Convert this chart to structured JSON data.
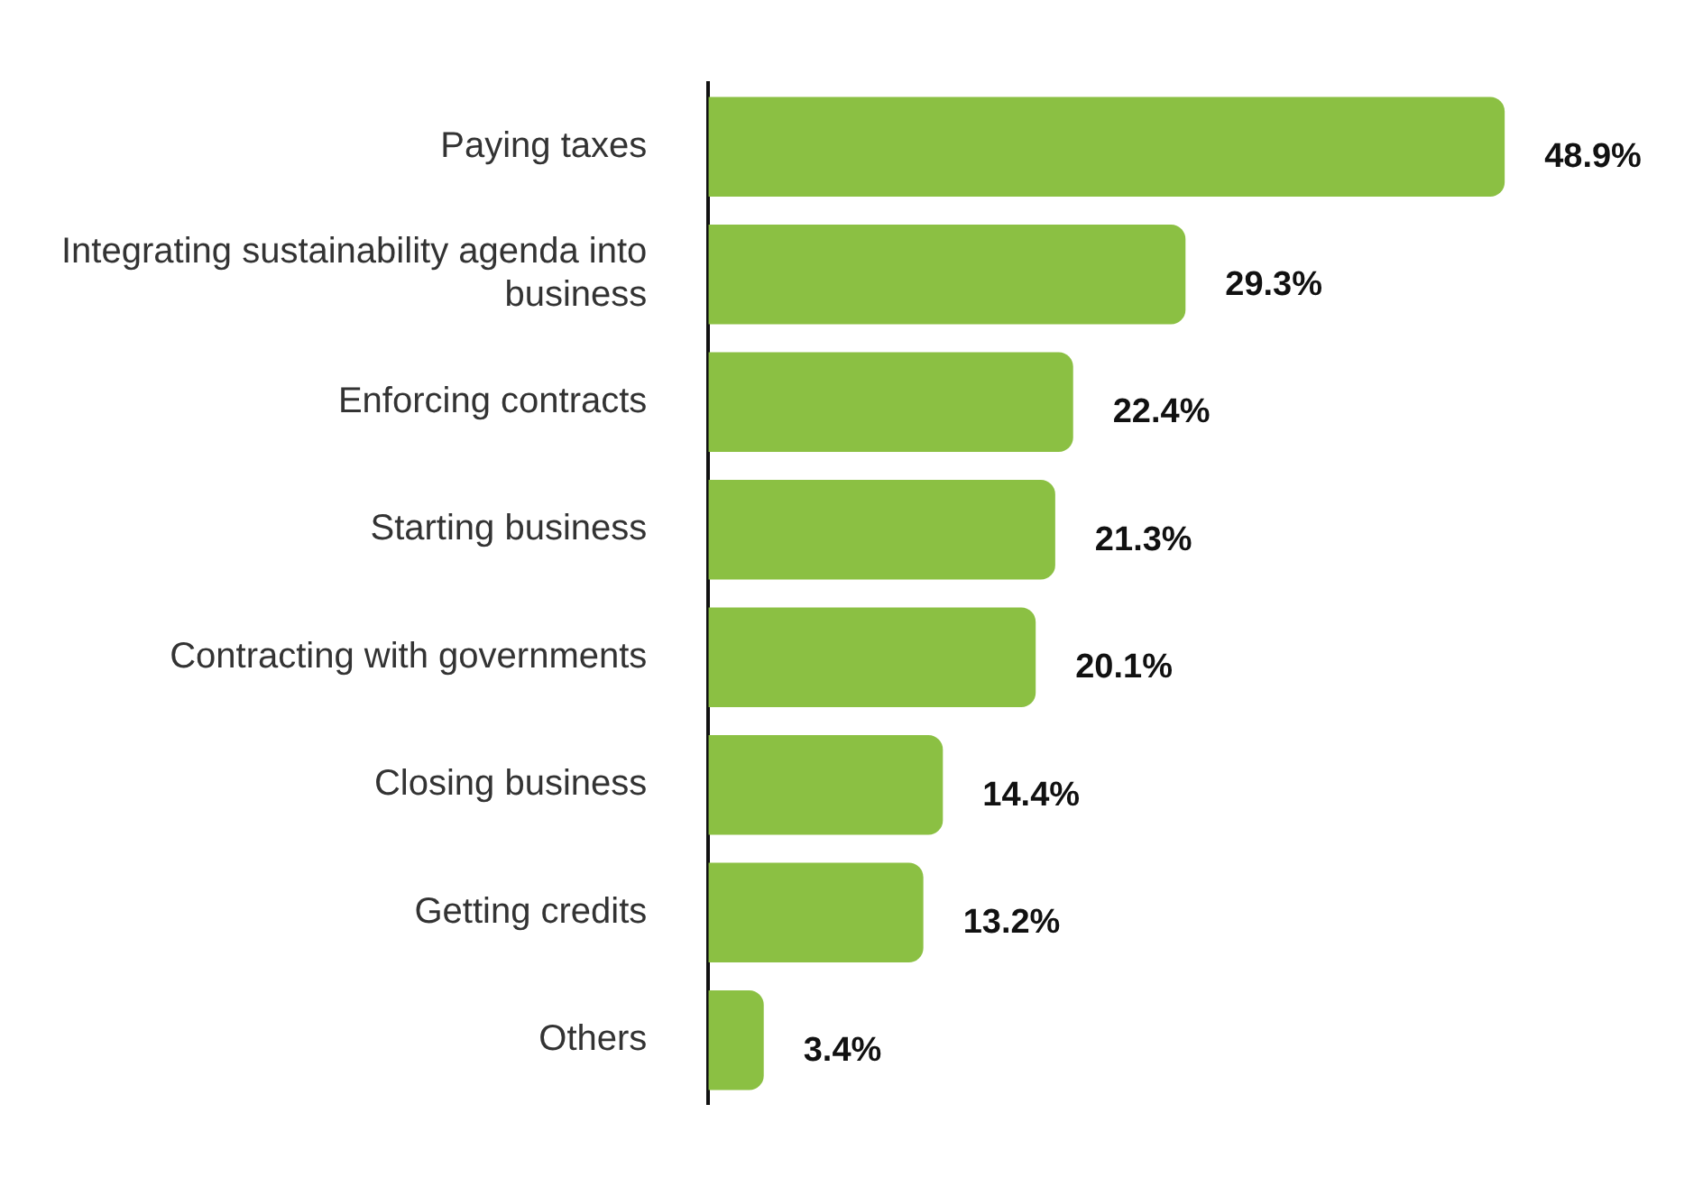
{
  "chart_data": {
    "type": "bar",
    "orientation": "horizontal",
    "categories": [
      "Paying taxes",
      "Integrating sustainability agenda into business",
      "Enforcing contracts",
      "Starting business",
      "Contracting with governments",
      "Closing business",
      "Getting credits",
      "Others"
    ],
    "values": [
      48.9,
      29.3,
      22.4,
      21.3,
      20.1,
      14.4,
      13.2,
      3.4
    ],
    "value_labels": [
      "48.9%",
      "29.3%",
      "22.4%",
      "21.3%",
      "20.1%",
      "14.4%",
      "13.2%",
      "3.4%"
    ],
    "color": "#8bc043"
  }
}
